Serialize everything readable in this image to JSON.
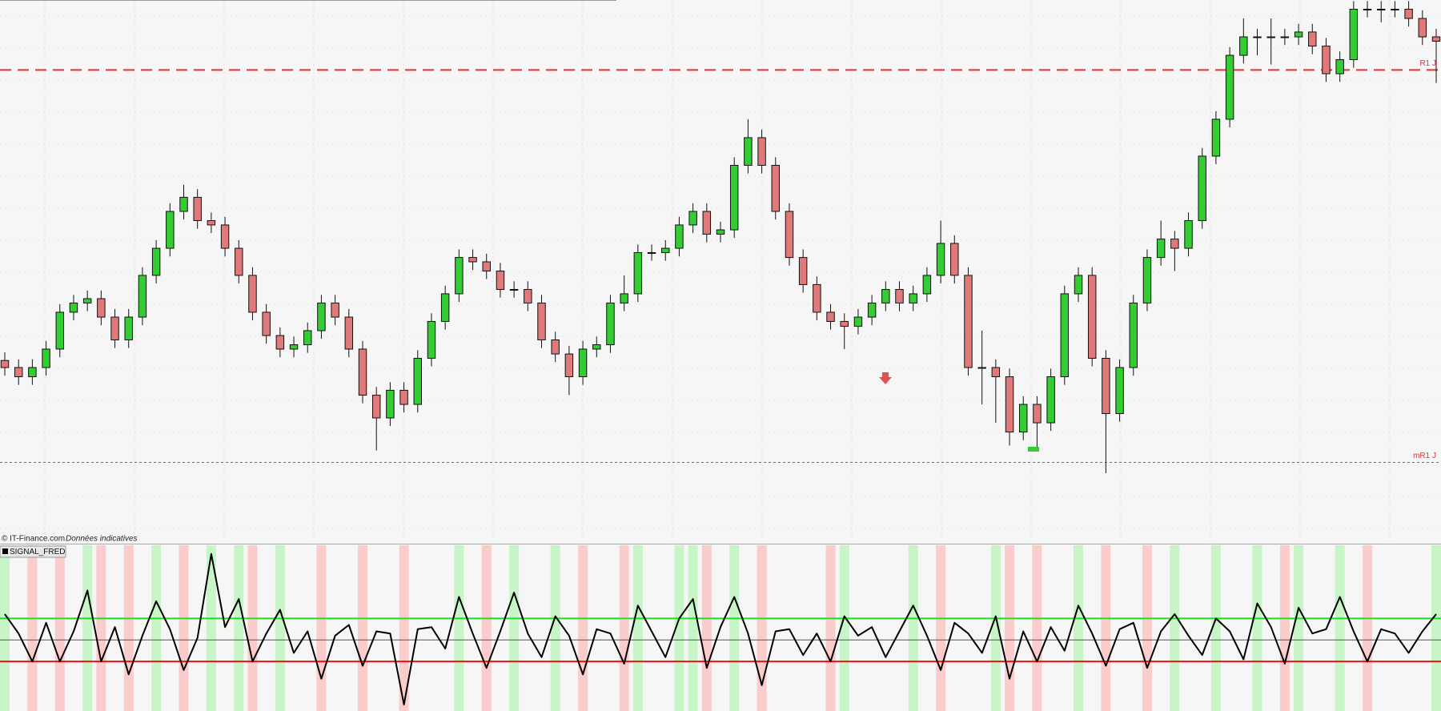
{
  "chart_data": [
    {
      "type": "candlestick",
      "ylim": [
        0,
        100
      ],
      "up_color": "#33cc33",
      "down_color": "#e07a7a",
      "levels": [
        {
          "name": "R1 J",
          "value": 87.1,
          "color": "#e83030",
          "style": "dashed"
        },
        {
          "name": "mR1 J",
          "value": 14.7,
          "color": "#e83030",
          "style": "dotted"
        }
      ],
      "candles": [
        [
          33.5,
          35.0,
          30.7,
          32.2
        ],
        [
          32.2,
          33.7,
          29.0,
          30.5
        ],
        [
          30.5,
          33.7,
          29.0,
          32.2
        ],
        [
          32.2,
          37.1,
          30.7,
          35.6
        ],
        [
          35.6,
          43.9,
          34.1,
          42.4
        ],
        [
          42.4,
          45.6,
          40.9,
          44.1
        ],
        [
          44.1,
          46.4,
          42.6,
          44.9
        ],
        [
          44.9,
          46.4,
          40.0,
          41.5
        ],
        [
          41.5,
          43.0,
          35.8,
          37.3
        ],
        [
          37.3,
          43.0,
          35.8,
          41.5
        ],
        [
          41.5,
          50.7,
          40.0,
          49.2
        ],
        [
          49.2,
          55.7,
          47.7,
          54.2
        ],
        [
          54.2,
          62.5,
          52.7,
          61.0
        ],
        [
          61.0,
          65.9,
          59.5,
          63.6
        ],
        [
          63.6,
          65.1,
          57.8,
          59.3
        ],
        [
          59.3,
          60.8,
          57.0,
          58.5
        ],
        [
          58.5,
          60.0,
          52.7,
          54.2
        ],
        [
          54.2,
          55.7,
          47.7,
          49.2
        ],
        [
          49.2,
          50.7,
          40.9,
          42.4
        ],
        [
          42.4,
          43.9,
          36.6,
          38.1
        ],
        [
          38.1,
          39.6,
          34.1,
          35.6
        ],
        [
          35.6,
          37.9,
          34.1,
          36.4
        ],
        [
          36.4,
          40.5,
          34.9,
          39.0
        ],
        [
          39.0,
          45.6,
          37.5,
          44.1
        ],
        [
          44.1,
          45.6,
          40.0,
          41.5
        ],
        [
          41.5,
          43.0,
          34.1,
          35.6
        ],
        [
          35.6,
          37.1,
          25.6,
          27.1
        ],
        [
          27.1,
          28.6,
          16.9,
          22.9
        ],
        [
          22.9,
          29.5,
          21.4,
          28.0
        ],
        [
          28.0,
          29.5,
          23.9,
          25.4
        ],
        [
          25.4,
          35.4,
          23.9,
          33.9
        ],
        [
          33.9,
          42.2,
          32.4,
          40.7
        ],
        [
          40.7,
          47.3,
          39.2,
          45.8
        ],
        [
          45.8,
          54.0,
          44.3,
          52.5
        ],
        [
          52.5,
          54.0,
          50.2,
          51.7
        ],
        [
          51.7,
          53.2,
          48.5,
          50.0
        ],
        [
          50.0,
          51.5,
          45.1,
          46.6
        ],
        [
          46.6,
          48.1,
          45.1,
          46.6
        ],
        [
          46.6,
          48.1,
          42.6,
          44.1
        ],
        [
          44.1,
          45.6,
          35.8,
          37.3
        ],
        [
          37.3,
          38.8,
          33.2,
          34.7
        ],
        [
          34.7,
          36.2,
          27.1,
          30.5
        ],
        [
          30.5,
          37.1,
          29.0,
          35.6
        ],
        [
          35.6,
          37.9,
          34.1,
          36.4
        ],
        [
          36.4,
          45.6,
          34.9,
          44.1
        ],
        [
          44.1,
          49.2,
          42.6,
          45.8
        ],
        [
          45.8,
          54.9,
          44.3,
          53.4
        ],
        [
          53.4,
          54.9,
          51.9,
          53.4
        ],
        [
          53.4,
          55.7,
          51.9,
          54.2
        ],
        [
          54.2,
          60.0,
          52.7,
          58.5
        ],
        [
          58.5,
          62.5,
          57.0,
          61.0
        ],
        [
          61.0,
          62.5,
          55.3,
          56.8
        ],
        [
          56.8,
          59.1,
          55.3,
          57.6
        ],
        [
          57.6,
          71.0,
          56.1,
          69.5
        ],
        [
          69.5,
          78.0,
          68.0,
          74.6
        ],
        [
          74.6,
          76.1,
          68.0,
          69.5
        ],
        [
          69.5,
          71.0,
          59.5,
          61.0
        ],
        [
          61.0,
          62.5,
          51.0,
          52.5
        ],
        [
          52.5,
          54.0,
          46.0,
          47.5
        ],
        [
          47.5,
          49.0,
          40.9,
          42.4
        ],
        [
          42.4,
          43.9,
          39.2,
          40.7
        ],
        [
          40.7,
          42.2,
          35.6,
          39.8
        ],
        [
          39.8,
          43.0,
          38.3,
          41.5
        ],
        [
          41.5,
          45.6,
          40.0,
          44.1
        ],
        [
          44.1,
          48.1,
          42.6,
          46.6
        ],
        [
          46.6,
          48.1,
          42.6,
          44.1
        ],
        [
          44.1,
          47.3,
          42.6,
          45.8
        ],
        [
          45.8,
          50.7,
          44.3,
          49.2
        ],
        [
          49.2,
          59.3,
          47.7,
          55.1
        ],
        [
          55.1,
          56.6,
          47.7,
          49.2
        ],
        [
          49.2,
          50.7,
          30.7,
          32.2
        ],
        [
          32.2,
          39.0,
          25.4,
          32.2
        ],
        [
          32.2,
          33.7,
          22.0,
          30.5
        ],
        [
          30.5,
          32.0,
          17.8,
          20.3
        ],
        [
          20.3,
          26.9,
          18.8,
          25.4
        ],
        [
          25.4,
          26.9,
          16.9,
          22.0
        ],
        [
          22.0,
          32.0,
          20.5,
          30.5
        ],
        [
          30.5,
          47.3,
          29.0,
          45.8
        ],
        [
          45.8,
          50.7,
          44.3,
          49.2
        ],
        [
          49.2,
          50.7,
          32.4,
          33.9
        ],
        [
          33.9,
          35.4,
          12.7,
          23.7
        ],
        [
          23.7,
          33.7,
          22.2,
          32.2
        ],
        [
          32.2,
          45.6,
          30.7,
          44.1
        ],
        [
          44.1,
          54.0,
          42.6,
          52.5
        ],
        [
          52.5,
          59.3,
          51.0,
          55.9
        ],
        [
          55.9,
          57.4,
          50.0,
          54.2
        ],
        [
          54.2,
          60.8,
          52.7,
          59.3
        ],
        [
          59.3,
          72.7,
          57.8,
          71.2
        ],
        [
          71.2,
          79.5,
          69.7,
          78.0
        ],
        [
          78.0,
          91.3,
          76.5,
          89.8
        ],
        [
          89.8,
          96.6,
          88.3,
          93.2
        ],
        [
          93.2,
          94.7,
          89.8,
          93.2
        ],
        [
          93.2,
          96.6,
          88.1,
          93.2
        ],
        [
          93.2,
          94.7,
          91.7,
          93.2
        ],
        [
          93.2,
          95.6,
          91.7,
          94.1
        ],
        [
          94.1,
          95.6,
          90.0,
          91.5
        ],
        [
          91.5,
          93.0,
          84.9,
          86.4
        ],
        [
          86.4,
          90.5,
          84.9,
          89.0
        ],
        [
          89.0,
          99.8,
          87.5,
          98.3
        ],
        [
          98.3,
          99.8,
          96.8,
          98.3
        ],
        [
          98.3,
          99.8,
          95.9,
          98.3
        ],
        [
          98.3,
          99.8,
          96.8,
          98.3
        ],
        [
          98.3,
          99.8,
          95.1,
          96.6
        ],
        [
          96.6,
          98.1,
          91.7,
          93.2
        ],
        [
          93.2,
          94.7,
          84.7,
          92.4
        ]
      ]
    },
    {
      "type": "line",
      "ylim": [
        -3.3,
        4.4
      ],
      "band_colors": [
        "#c8f5c8",
        "#fbcccc"
      ],
      "levels": [
        {
          "value": 1,
          "color": "#22dd22"
        },
        {
          "value": 0,
          "color": "#555555"
        },
        {
          "value": -1,
          "color": "#ee1111"
        }
      ],
      "series": [
        {
          "name": "SIGNAL_FRED",
          "color": "#000000",
          "values": [
            1.2,
            0.3,
            -1,
            0.8,
            -1,
            0.4,
            2.3,
            -1,
            0.6,
            -1.6,
            0.2,
            1.8,
            0.5,
            -1.4,
            0.1,
            4.0,
            0.6,
            1.9,
            -1,
            0.3,
            1.4,
            -0.6,
            0.4,
            -1.8,
            0.2,
            0.7,
            -1.2,
            0.4,
            0.3,
            -3.0,
            0.5,
            0.6,
            -0.4,
            2.0,
            0.3,
            -1.3,
            0.4,
            2.2,
            0.3,
            -0.8,
            1.1,
            0.2,
            -1.6,
            0.5,
            0.3,
            -1.1,
            1.6,
            0.4,
            -0.8,
            1.0,
            1.9,
            -1.3,
            0.6,
            2.0,
            0.3,
            -2.1,
            0.4,
            0.5,
            -0.7,
            0.3,
            -1.0,
            1.1,
            0.2,
            0.6,
            -0.8,
            0.4,
            1.6,
            0.2,
            -1.4,
            0.8,
            0.3,
            -0.6,
            1.1,
            -1.8,
            0.4,
            -1.0,
            0.6,
            -0.5,
            1.6,
            0.3,
            -1.2,
            0.5,
            0.8,
            -1.3,
            0.4,
            1.2,
            0.2,
            -0.7,
            1.0,
            0.4,
            -0.9,
            1.7,
            0.6,
            -1.1,
            1.5,
            0.3,
            0.5,
            2.0,
            0.4,
            -1.0,
            0.5,
            0.3,
            -0.6,
            0.4,
            1.2
          ]
        }
      ]
    }
  ],
  "footer": {
    "source": "© IT-Finance.com",
    "note": "Données indicatives"
  }
}
